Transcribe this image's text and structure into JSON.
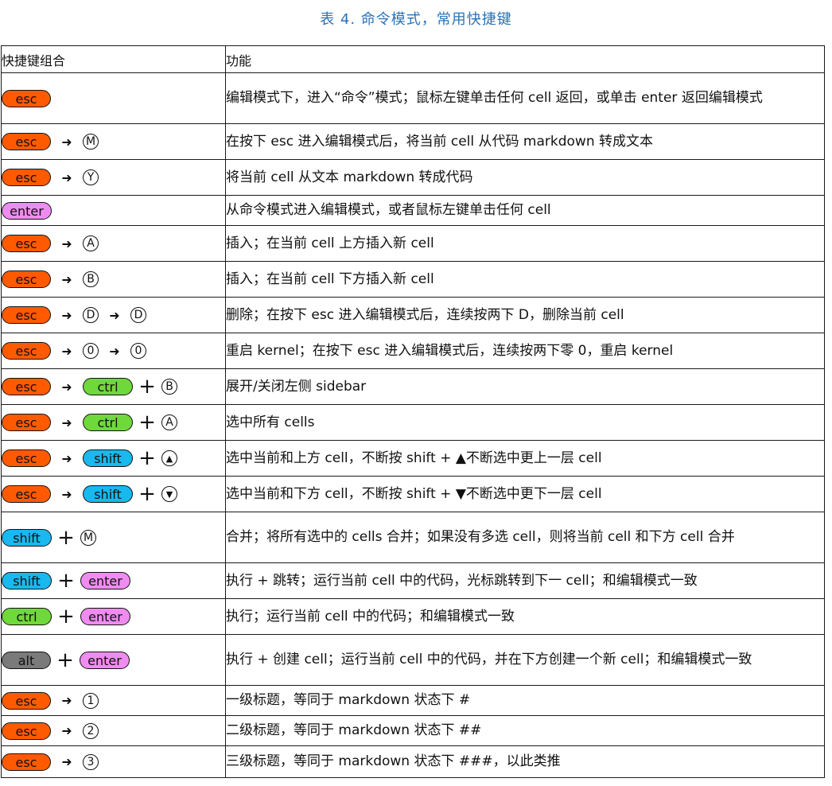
{
  "caption": "表 4. 命令模式，常用快捷键",
  "header": {
    "col1": "快捷键组合",
    "col2": "功能"
  },
  "rows": [
    {
      "keys": [
        {
          "t": "pill",
          "c": "esc",
          "v": "esc"
        }
      ],
      "desc": "编辑模式下，进入“命令”模式；鼠标左键单击任何 cell 返回，或单击 enter 返回编辑模式"
    },
    {
      "keys": [
        {
          "t": "pill",
          "c": "esc",
          "v": "esc"
        },
        {
          "t": "arrow"
        },
        {
          "t": "key",
          "v": "M"
        }
      ],
      "desc": "在按下 esc 进入编辑模式后，将当前 cell 从代码 markdown 转成文本"
    },
    {
      "keys": [
        {
          "t": "pill",
          "c": "esc",
          "v": "esc"
        },
        {
          "t": "arrow"
        },
        {
          "t": "key",
          "v": "Y"
        }
      ],
      "desc": "将当前 cell 从文本 markdown 转成代码"
    },
    {
      "keys": [
        {
          "t": "pill",
          "c": "enter",
          "v": "enter"
        }
      ],
      "desc": "从命令模式进入编辑模式，或者鼠标左键单击任何 cell"
    },
    {
      "keys": [
        {
          "t": "pill",
          "c": "esc",
          "v": "esc"
        },
        {
          "t": "arrow"
        },
        {
          "t": "key",
          "v": "A"
        }
      ],
      "desc": "插入；在当前 cell 上方插入新 cell"
    },
    {
      "keys": [
        {
          "t": "pill",
          "c": "esc",
          "v": "esc"
        },
        {
          "t": "arrow"
        },
        {
          "t": "key",
          "v": "B"
        }
      ],
      "desc": "插入；在当前 cell 下方插入新 cell"
    },
    {
      "keys": [
        {
          "t": "pill",
          "c": "esc",
          "v": "esc"
        },
        {
          "t": "arrow"
        },
        {
          "t": "key",
          "v": "D"
        },
        {
          "t": "arrow"
        },
        {
          "t": "key",
          "v": "D"
        }
      ],
      "desc": "删除；在按下 esc 进入编辑模式后，连续按两下 D，删除当前 cell"
    },
    {
      "keys": [
        {
          "t": "pill",
          "c": "esc",
          "v": "esc"
        },
        {
          "t": "arrow"
        },
        {
          "t": "key",
          "v": "0"
        },
        {
          "t": "arrow"
        },
        {
          "t": "key",
          "v": "0"
        }
      ],
      "desc": "重启 kernel；在按下 esc 进入编辑模式后，连续按两下零 0，重启 kernel"
    },
    {
      "keys": [
        {
          "t": "pill",
          "c": "esc",
          "v": "esc"
        },
        {
          "t": "arrow"
        },
        {
          "t": "pill",
          "c": "ctrl",
          "v": "ctrl"
        },
        {
          "t": "plus"
        },
        {
          "t": "key",
          "v": "B"
        }
      ],
      "desc": "展开/关闭左侧 sidebar"
    },
    {
      "keys": [
        {
          "t": "pill",
          "c": "esc",
          "v": "esc"
        },
        {
          "t": "arrow"
        },
        {
          "t": "pill",
          "c": "ctrl",
          "v": "ctrl"
        },
        {
          "t": "plus"
        },
        {
          "t": "key",
          "v": "A"
        }
      ],
      "desc": "选中所有 cells"
    },
    {
      "keys": [
        {
          "t": "pill",
          "c": "esc",
          "v": "esc"
        },
        {
          "t": "arrow"
        },
        {
          "t": "pill",
          "c": "shift",
          "v": "shift"
        },
        {
          "t": "plus"
        },
        {
          "t": "key",
          "v": "▲",
          "f": true
        }
      ],
      "desc": "选中当前和上方 cell，不断按 shift + ▲不断选中更上一层 cell"
    },
    {
      "keys": [
        {
          "t": "pill",
          "c": "esc",
          "v": "esc"
        },
        {
          "t": "arrow"
        },
        {
          "t": "pill",
          "c": "shift",
          "v": "shift"
        },
        {
          "t": "plus"
        },
        {
          "t": "key",
          "v": "▼",
          "f": true
        }
      ],
      "desc": "选中当前和下方 cell，不断按 shift + ▼不断选中更下一层 cell"
    },
    {
      "keys": [
        {
          "t": "pill",
          "c": "shift",
          "v": "shift"
        },
        {
          "t": "plus"
        },
        {
          "t": "key",
          "v": "M"
        }
      ],
      "desc": "合并；将所有选中的 cells 合并；如果没有多选 cell，则将当前 cell 和下方 cell 合并"
    },
    {
      "keys": [
        {
          "t": "pill",
          "c": "shift",
          "v": "shift"
        },
        {
          "t": "plus"
        },
        {
          "t": "pill",
          "c": "enter",
          "v": "enter"
        }
      ],
      "desc": "执行 + 跳转；运行当前 cell 中的代码，光标跳转到下一 cell；和编辑模式一致"
    },
    {
      "keys": [
        {
          "t": "pill",
          "c": "ctrl",
          "v": "ctrl"
        },
        {
          "t": "plus"
        },
        {
          "t": "pill",
          "c": "enter",
          "v": "enter"
        }
      ],
      "desc": "执行；运行当前 cell 中的代码；和编辑模式一致"
    },
    {
      "keys": [
        {
          "t": "pill",
          "c": "alt",
          "v": "alt"
        },
        {
          "t": "plus"
        },
        {
          "t": "pill",
          "c": "enter",
          "v": "enter"
        }
      ],
      "desc": "执行 + 创建 cell；运行当前 cell 中的代码，并在下方创建一个新 cell；和编辑模式一致"
    },
    {
      "keys": [
        {
          "t": "pill",
          "c": "esc",
          "v": "esc"
        },
        {
          "t": "arrow"
        },
        {
          "t": "key",
          "v": "1"
        }
      ],
      "desc": "一级标题，等同于 markdown 状态下 #"
    },
    {
      "keys": [
        {
          "t": "pill",
          "c": "esc",
          "v": "esc"
        },
        {
          "t": "arrow"
        },
        {
          "t": "key",
          "v": "2"
        }
      ],
      "desc": "二级标题，等同于 markdown 状态下 ##"
    },
    {
      "keys": [
        {
          "t": "pill",
          "c": "esc",
          "v": "esc"
        },
        {
          "t": "arrow"
        },
        {
          "t": "key",
          "v": "3"
        }
      ],
      "desc": "三级标题，等同于 markdown 状态下 ###，以此类推"
    }
  ],
  "colors": {
    "esc": "#ff5a00",
    "enter": "#ef8cf0",
    "ctrl": "#6fd83b",
    "shift": "#19b8ef",
    "alt": "#7a7a7a",
    "caption": "#2a72b5"
  }
}
